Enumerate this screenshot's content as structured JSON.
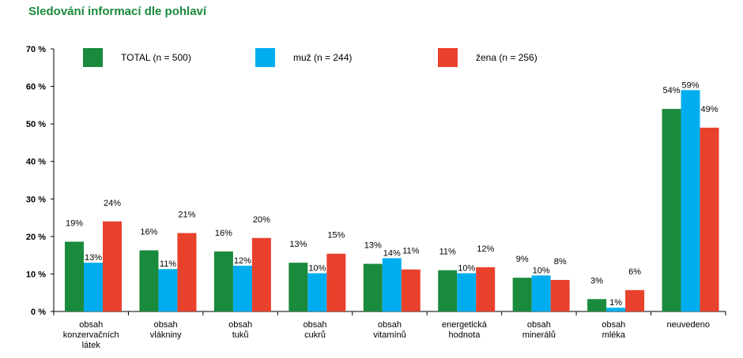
{
  "chart_data": {
    "type": "bar",
    "title": "Sledování informací dle pohlaví",
    "xlabel": "",
    "ylabel": "",
    "ylim": [
      0,
      70
    ],
    "yticks": [
      "0 %",
      "10 %",
      "20 %",
      "30 %",
      "40 %",
      "50 %",
      "60 %",
      "70 %"
    ],
    "yticks_values": [
      0,
      10,
      20,
      30,
      40,
      50,
      60,
      70
    ],
    "categories": [
      [
        "obsah",
        "konzervačních",
        "látek"
      ],
      [
        "obsah",
        "vlákniny"
      ],
      [
        "obsah",
        "tuků"
      ],
      [
        "obsah",
        "cukrů"
      ],
      [
        "obsah",
        "vitamínů"
      ],
      [
        "energetická",
        "hodnota"
      ],
      [
        "obsah",
        "minerálů"
      ],
      [
        "obsah",
        "mléka"
      ],
      [
        "neuvedeno"
      ]
    ],
    "series": [
      {
        "name": "TOTAL (n = 500)",
        "color": "#1a8a3c",
        "values": [
          18.6,
          16.3,
          16.0,
          13.0,
          12.7,
          11.0,
          9.0,
          3.3,
          54.0
        ],
        "labels": [
          "19%",
          "16%",
          "16%",
          "13%",
          "13%",
          "11%",
          "9%",
          "3%",
          "54%"
        ]
      },
      {
        "name": "muž (n = 244)",
        "color": "#00aeef",
        "values": [
          13.0,
          11.3,
          12.2,
          10.2,
          14.2,
          10.2,
          9.6,
          1.0,
          59.0
        ],
        "labels": [
          "13%",
          "11%",
          "12%",
          "10%",
          "14%",
          "10%",
          "10%",
          "1%",
          "59%"
        ]
      },
      {
        "name": "žena (n = 256)",
        "color": "#e8412c",
        "values": [
          24.0,
          20.9,
          19.6,
          15.4,
          11.2,
          11.8,
          8.4,
          5.7,
          49.0
        ],
        "labels": [
          "24%",
          "21%",
          "20%",
          "15%",
          "11%",
          "12%",
          "8%",
          "6%",
          "49%"
        ]
      }
    ],
    "grid": false,
    "legend_position": "top"
  }
}
